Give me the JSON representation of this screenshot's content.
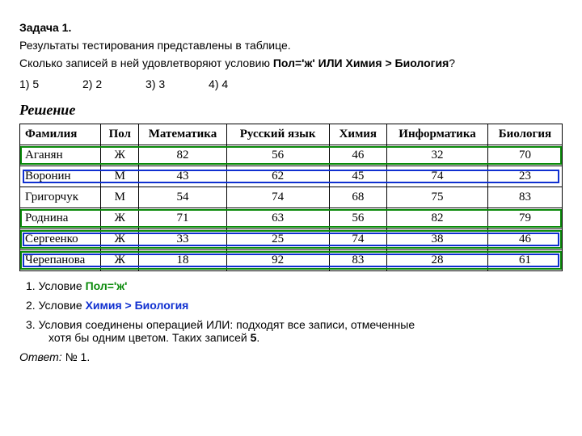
{
  "task": {
    "heading": "Задача 1.",
    "intro": "Результаты тестирования представлены в таблице.",
    "question_prefix": "Сколько записей в ней удовлетворяют условию ",
    "question_cond": "Пол='ж' ИЛИ Химия > Биология",
    "question_suffix": "?"
  },
  "answers": {
    "a1": "1) 5",
    "a2": "2) 2",
    "a3": "3) 3",
    "a4": "4) 4"
  },
  "solution_label": "Решение",
  "table": {
    "headers": [
      "Фамилия",
      "Пол",
      "Математика",
      "Русский язык",
      "Химия",
      "Информатика",
      "Биология"
    ],
    "rows": [
      {
        "cells": [
          "Аганян",
          "Ж",
          "82",
          "56",
          "46",
          "32",
          "70"
        ],
        "green": true,
        "blue": false
      },
      {
        "cells": [
          "Воронин",
          "М",
          "43",
          "62",
          "45",
          "74",
          "23"
        ],
        "green": false,
        "blue": true
      },
      {
        "cells": [
          "Григорчук",
          "М",
          "54",
          "74",
          "68",
          "75",
          "83"
        ],
        "green": false,
        "blue": false
      },
      {
        "cells": [
          "Роднина",
          "Ж",
          "71",
          "63",
          "56",
          "82",
          "79"
        ],
        "green": true,
        "blue": false
      },
      {
        "cells": [
          "Сергеенко",
          "Ж",
          "33",
          "25",
          "74",
          "38",
          "46"
        ],
        "green": true,
        "blue": true
      },
      {
        "cells": [
          "Черепанова",
          "Ж",
          "18",
          "92",
          "83",
          "28",
          "61"
        ],
        "green": true,
        "blue": true
      }
    ]
  },
  "explain": {
    "l1_prefix": "1. Условие ",
    "l1_cond": "Пол='ж'",
    "l2_prefix": "2. Условие ",
    "l2_cond": "Химия > Биология",
    "l3a": "3. Условия соединены операцией ИЛИ: подходят все записи, отмеченные",
    "l3b": "хотя бы одним цветом. Таких записей ",
    "l3b_bold": "5",
    "l3b_tail": "."
  },
  "answer": {
    "label": "Ответ:",
    "text": " № 1."
  }
}
